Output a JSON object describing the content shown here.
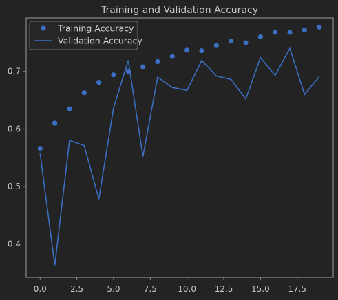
{
  "chart_data": {
    "type": "line",
    "title": "Training and Validation Accuracy",
    "xlabel": "",
    "ylabel": "",
    "x": [
      0,
      1,
      2,
      3,
      4,
      5,
      6,
      7,
      8,
      9,
      10,
      11,
      12,
      13,
      14,
      15,
      16,
      17,
      18,
      19
    ],
    "xlim": [
      -0.95,
      19.95
    ],
    "ylim": [
      0.342,
      0.793
    ],
    "xticks": [
      0.0,
      2.5,
      5.0,
      7.5,
      10.0,
      12.5,
      15.0,
      17.5
    ],
    "xtick_labels": [
      "0.0",
      "2.5",
      "5.0",
      "7.5",
      "10.0",
      "12.5",
      "15.0",
      "17.5"
    ],
    "yticks": [
      0.4,
      0.5,
      0.6,
      0.7
    ],
    "ytick_labels": [
      "0.4",
      "0.5",
      "0.6",
      "0.7"
    ],
    "grid": false,
    "legend_position": "top-left",
    "series": [
      {
        "name": "Training Accuracy",
        "style": "markers",
        "color": "#3a6fc4",
        "values": [
          0.566,
          0.61,
          0.635,
          0.663,
          0.681,
          0.694,
          0.7,
          0.708,
          0.717,
          0.726,
          0.737,
          0.736,
          0.745,
          0.753,
          0.75,
          0.76,
          0.768,
          0.768,
          0.772,
          0.777
        ]
      },
      {
        "name": "Validation Accuracy",
        "style": "line",
        "color": "#3a6fc4",
        "values": [
          0.557,
          0.363,
          0.58,
          0.571,
          0.478,
          0.637,
          0.719,
          0.552,
          0.69,
          0.672,
          0.667,
          0.719,
          0.692,
          0.686,
          0.652,
          0.724,
          0.693,
          0.74,
          0.66,
          0.691
        ]
      }
    ]
  },
  "colors": {
    "background": "#232323",
    "axes_frame": "#8a8a8a",
    "text": "#c8c8c8",
    "series": "#3a6fc4"
  }
}
